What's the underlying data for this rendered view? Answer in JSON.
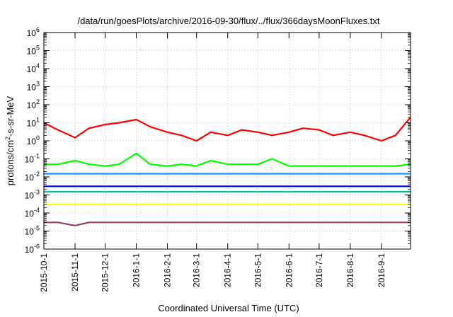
{
  "chart_data": {
    "type": "line",
    "title": "/data/run/goesPlots/archive/2016-09-30/flux/../flux/366daysMoonFluxes.txt",
    "xlabel": "Coordinated Universal Time (UTC)",
    "ylabel": "protons/cm²-s-sr-MeV",
    "ylabel_parts": {
      "pre": "protons/cm",
      "sup": "2",
      "post": "-s-sr-MeV"
    },
    "yscale": "log",
    "ylim": [
      1e-06,
      1000000.0
    ],
    "xlim": [
      "2015-10-01",
      "2016-09-30"
    ],
    "grid": true,
    "x_ticks": [
      "2015-10-1",
      "2015-11-1",
      "2015-12-1",
      "2016-1-1",
      "2016-2-1",
      "2016-3-1",
      "2016-4-1",
      "2016-5-1",
      "2016-6-1",
      "2016-7-1",
      "2016-8-1",
      "2016-9-1"
    ],
    "x_tick_dates": [
      "2015-10-01",
      "2015-11-01",
      "2015-12-01",
      "2016-01-01",
      "2016-02-01",
      "2016-03-01",
      "2016-04-01",
      "2016-05-01",
      "2016-06-01",
      "2016-07-01",
      "2016-08-01",
      "2016-09-01"
    ],
    "y_ticks": [
      {
        "base": "10",
        "exp": "-6",
        "value": 1e-06
      },
      {
        "base": "10",
        "exp": "-5",
        "value": 1e-05
      },
      {
        "base": "10",
        "exp": "-4",
        "value": 0.0001
      },
      {
        "base": "10",
        "exp": "-3",
        "value": 0.001
      },
      {
        "base": "10",
        "exp": "-2",
        "value": 0.01
      },
      {
        "base": "10",
        "exp": "-1",
        "value": 0.1
      },
      {
        "base": "10",
        "exp": "0",
        "value": 1
      },
      {
        "base": "10",
        "exp": "1",
        "value": 10
      },
      {
        "base": "10",
        "exp": "2",
        "value": 100
      },
      {
        "base": "10",
        "exp": "3",
        "value": 1000
      },
      {
        "base": "10",
        "exp": "4",
        "value": 10000
      },
      {
        "base": "10",
        "exp": "5",
        "value": 100000
      },
      {
        "base": "10",
        "exp": "6",
        "value": 1000000
      }
    ],
    "series": [
      {
        "color": "#9b3a6c",
        "dates": [
          "2015-10-01",
          "2015-10-15",
          "2015-11-01",
          "2015-11-15",
          "2015-12-01",
          "2015-12-15",
          "2016-01-01",
          "2016-01-15",
          "2016-02-01",
          "2016-02-15",
          "2016-03-01",
          "2016-03-15",
          "2016-04-01",
          "2016-04-15",
          "2016-05-01",
          "2016-05-15",
          "2016-06-01",
          "2016-06-15",
          "2016-07-01",
          "2016-07-15",
          "2016-08-01",
          "2016-08-15",
          "2016-09-01",
          "2016-09-15",
          "2016-09-30"
        ],
        "values": [
          3e-05,
          3e-05,
          2e-05,
          3e-05,
          3e-05,
          3e-05,
          3e-05,
          3e-05,
          3e-05,
          3e-05,
          3e-05,
          3e-05,
          3e-05,
          3e-05,
          3e-05,
          3e-05,
          3e-05,
          3e-05,
          3e-05,
          3e-05,
          3e-05,
          3e-05,
          3e-05,
          3e-05,
          3e-05
        ]
      },
      {
        "color": "#ffff00",
        "dates": [
          "2015-10-01",
          "2015-10-15",
          "2015-11-01",
          "2015-11-15",
          "2015-12-01",
          "2015-12-15",
          "2016-01-01",
          "2016-01-15",
          "2016-02-01",
          "2016-02-15",
          "2016-03-01",
          "2016-03-15",
          "2016-04-01",
          "2016-04-15",
          "2016-05-01",
          "2016-05-15",
          "2016-06-01",
          "2016-06-15",
          "2016-07-01",
          "2016-07-15",
          "2016-08-01",
          "2016-08-15",
          "2016-09-01",
          "2016-09-15",
          "2016-09-30"
        ],
        "values": [
          0.0003,
          0.0003,
          0.0003,
          0.0003,
          0.0003,
          0.0003,
          0.0003,
          0.0003,
          0.0003,
          0.0003,
          0.0003,
          0.0003,
          0.0003,
          0.0003,
          0.0003,
          0.0003,
          0.0003,
          0.0003,
          0.0003,
          0.0003,
          0.0003,
          0.0003,
          0.0003,
          0.0003,
          0.0003
        ]
      },
      {
        "color": "#00c0a0",
        "dates": [
          "2015-10-01",
          "2015-10-15",
          "2015-11-01",
          "2015-11-15",
          "2015-12-01",
          "2015-12-15",
          "2016-01-01",
          "2016-01-15",
          "2016-02-01",
          "2016-02-15",
          "2016-03-01",
          "2016-03-15",
          "2016-04-01",
          "2016-04-15",
          "2016-05-01",
          "2016-05-15",
          "2016-06-01",
          "2016-06-15",
          "2016-07-01",
          "2016-07-15",
          "2016-08-01",
          "2016-08-15",
          "2016-09-01",
          "2016-09-15",
          "2016-09-30"
        ],
        "values": [
          0.0015,
          0.0015,
          0.0015,
          0.0015,
          0.0015,
          0.0015,
          0.0015,
          0.0015,
          0.0015,
          0.0015,
          0.0015,
          0.0015,
          0.0015,
          0.0015,
          0.0015,
          0.0015,
          0.0015,
          0.0015,
          0.0015,
          0.0015,
          0.0015,
          0.0015,
          0.0015,
          0.0015,
          0.0015
        ]
      },
      {
        "color": "#0000ff",
        "dates": [
          "2015-10-01",
          "2015-10-15",
          "2015-11-01",
          "2015-11-15",
          "2015-12-01",
          "2015-12-15",
          "2016-01-01",
          "2016-01-15",
          "2016-02-01",
          "2016-02-15",
          "2016-03-01",
          "2016-03-15",
          "2016-04-01",
          "2016-04-15",
          "2016-05-01",
          "2016-05-15",
          "2016-06-01",
          "2016-06-15",
          "2016-07-01",
          "2016-07-15",
          "2016-08-01",
          "2016-08-15",
          "2016-09-01",
          "2016-09-15",
          "2016-09-30"
        ],
        "values": [
          0.003,
          0.003,
          0.003,
          0.003,
          0.003,
          0.003,
          0.003,
          0.003,
          0.003,
          0.003,
          0.003,
          0.003,
          0.003,
          0.003,
          0.003,
          0.003,
          0.003,
          0.003,
          0.003,
          0.003,
          0.003,
          0.003,
          0.003,
          0.003,
          0.003
        ]
      },
      {
        "color": "#1e90ff",
        "dates": [
          "2015-10-01",
          "2015-10-15",
          "2015-11-01",
          "2015-11-15",
          "2015-12-01",
          "2015-12-15",
          "2016-01-01",
          "2016-01-15",
          "2016-02-01",
          "2016-02-15",
          "2016-03-01",
          "2016-03-15",
          "2016-04-01",
          "2016-04-15",
          "2016-05-01",
          "2016-05-15",
          "2016-06-01",
          "2016-06-15",
          "2016-07-01",
          "2016-07-15",
          "2016-08-01",
          "2016-08-15",
          "2016-09-01",
          "2016-09-15",
          "2016-09-30"
        ],
        "values": [
          0.015,
          0.015,
          0.015,
          0.015,
          0.015,
          0.015,
          0.015,
          0.015,
          0.015,
          0.015,
          0.015,
          0.015,
          0.015,
          0.015,
          0.015,
          0.015,
          0.015,
          0.015,
          0.015,
          0.015,
          0.015,
          0.015,
          0.015,
          0.015,
          0.015
        ]
      },
      {
        "color": "#00ff00",
        "dates": [
          "2015-10-01",
          "2015-10-15",
          "2015-11-01",
          "2015-11-15",
          "2015-12-01",
          "2015-12-15",
          "2016-01-01",
          "2016-01-15",
          "2016-02-01",
          "2016-02-15",
          "2016-03-01",
          "2016-03-15",
          "2016-04-01",
          "2016-04-15",
          "2016-05-01",
          "2016-05-15",
          "2016-06-01",
          "2016-06-15",
          "2016-07-01",
          "2016-07-15",
          "2016-08-01",
          "2016-08-15",
          "2016-09-01",
          "2016-09-15",
          "2016-09-30"
        ],
        "values": [
          0.05,
          0.05,
          0.08,
          0.05,
          0.04,
          0.05,
          0.2,
          0.05,
          0.04,
          0.05,
          0.04,
          0.08,
          0.05,
          0.05,
          0.05,
          0.1,
          0.04,
          0.04,
          0.04,
          0.04,
          0.04,
          0.04,
          0.04,
          0.04,
          0.05
        ]
      },
      {
        "color": "#ff0000",
        "dates": [
          "2015-10-01",
          "2015-10-15",
          "2015-11-01",
          "2015-11-15",
          "2015-12-01",
          "2015-12-15",
          "2016-01-01",
          "2016-01-15",
          "2016-02-01",
          "2016-02-15",
          "2016-03-01",
          "2016-03-15",
          "2016-04-01",
          "2016-04-15",
          "2016-05-01",
          "2016-05-15",
          "2016-06-01",
          "2016-06-15",
          "2016-07-01",
          "2016-07-15",
          "2016-08-01",
          "2016-08-15",
          "2016-09-01",
          "2016-09-15",
          "2016-09-30"
        ],
        "values": [
          10,
          4,
          1.5,
          5,
          8,
          10,
          15,
          6,
          3,
          2,
          1,
          3,
          2,
          4,
          3,
          2,
          3,
          5,
          4,
          2,
          3,
          2,
          1,
          2,
          20
        ]
      }
    ]
  }
}
